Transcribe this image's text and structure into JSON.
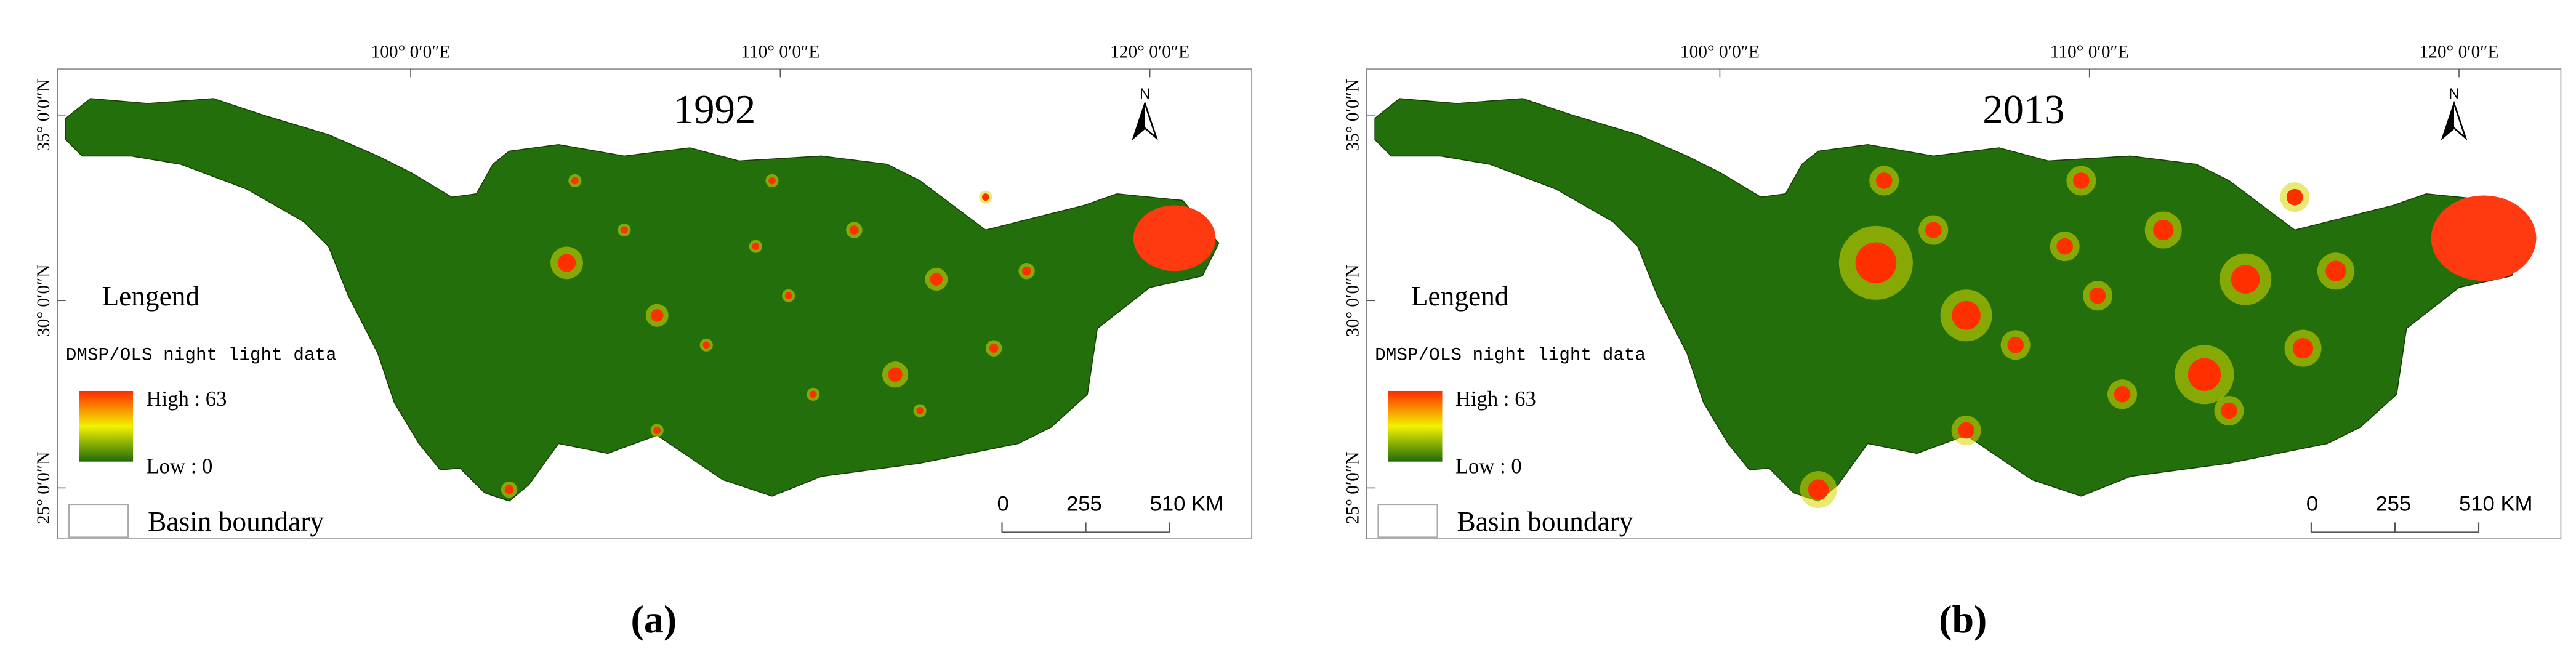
{
  "panels": [
    {
      "title": "1992",
      "caption": "(a)",
      "longitude_labels": [
        "100° 0′0″E",
        "110° 0′0″E",
        "120° 0′0″E"
      ],
      "latitude_labels": [
        "35° 0′0″N",
        "30° 0′0″N",
        "25° 0′0″N"
      ],
      "north": "N",
      "legend": {
        "title": "Lengend",
        "subtitle": "DMSP/OLS night light data",
        "high": "High : 63",
        "low": "Low : 0",
        "boundary": "Basin boundary"
      },
      "scale": [
        "0",
        "255",
        "510 KM"
      ]
    },
    {
      "title": "2013",
      "caption": "(b)",
      "longitude_labels": [
        "100° 0′0″E",
        "110° 0′0″E",
        "120° 0′0″E"
      ],
      "latitude_labels": [
        "35° 0′0″N",
        "30° 0′0″N",
        "25° 0′0″N"
      ],
      "north": "N",
      "legend": {
        "title": "Lengend",
        "subtitle": "DMSP/OLS night light data",
        "high": "High : 63",
        "low": "Low : 0",
        "boundary": "Basin boundary"
      },
      "scale": [
        "0",
        "255",
        "510 KM"
      ]
    }
  ]
}
